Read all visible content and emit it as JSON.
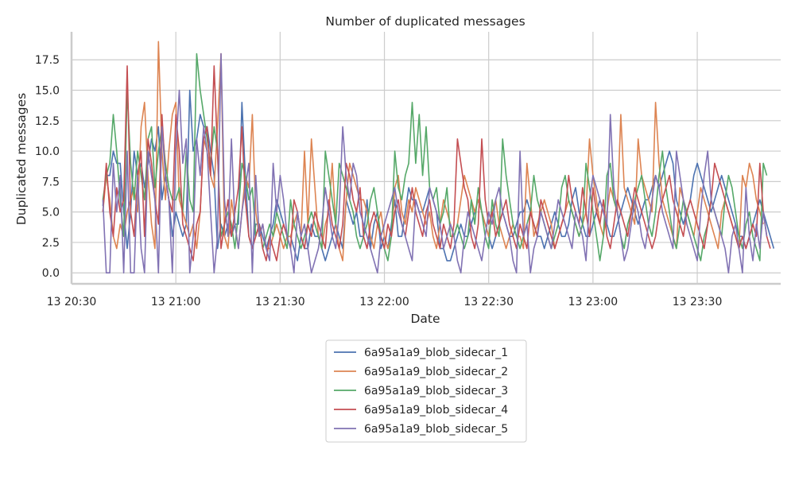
{
  "chart_data": {
    "type": "line",
    "title": "Number of duplicated messages",
    "xlabel": "Date",
    "ylabel": "Duplicated messages",
    "x_ticks": [
      {
        "label": "13 20:30",
        "minutes": 0
      },
      {
        "label": "13 21:00",
        "minutes": 30
      },
      {
        "label": "13 21:30",
        "minutes": 60
      },
      {
        "label": "13 22:00",
        "minutes": 90
      },
      {
        "label": "13 22:30",
        "minutes": 120
      },
      {
        "label": "13 23:00",
        "minutes": 150
      },
      {
        "label": "13 23:30",
        "minutes": 180
      }
    ],
    "x_range_minutes": [
      0,
      204
    ],
    "x_start": "13 20:30",
    "x_sample_start_minutes": 9.0,
    "x_sample_step_minutes": 1.0,
    "y_ticks": [
      "0.0",
      "2.5",
      "5.0",
      "7.5",
      "10.0",
      "12.5",
      "15.0",
      "17.5"
    ],
    "ylim": [
      -0.9,
      19.8
    ],
    "grid": true,
    "legend_position": "bottom-center",
    "series": [
      {
        "name": "6a95a1a9_blob_sidecar_1",
        "color": "#4c72b0",
        "values": [
          5.5,
          8,
          8,
          10,
          9,
          9,
          5,
          2,
          5,
          10,
          8,
          9,
          7,
          9,
          11,
          10,
          12,
          6,
          8,
          6,
          3,
          5,
          4,
          3,
          4,
          15,
          10,
          11,
          13,
          12,
          12,
          10,
          8,
          2,
          4,
          3,
          4,
          3,
          4,
          4,
          14,
          8,
          3,
          2,
          4,
          4,
          3,
          2,
          3,
          4,
          6,
          5,
          4,
          3,
          3,
          2,
          1,
          3,
          2,
          2,
          4,
          3,
          3,
          2,
          1,
          2,
          3,
          4,
          3,
          2,
          6,
          5,
          4,
          5,
          3,
          3,
          6,
          2,
          4,
          5,
          2,
          3,
          2,
          4,
          6,
          3,
          3,
          5,
          7,
          6,
          6,
          5,
          5,
          6,
          7,
          6,
          5,
          2,
          2,
          1,
          1,
          2,
          3,
          4,
          3,
          3,
          4,
          5,
          6,
          5,
          4,
          3,
          2,
          3,
          4,
          5,
          4,
          3,
          3,
          4,
          5,
          5,
          6,
          5,
          4,
          3,
          3,
          2,
          3,
          4,
          5,
          4,
          3,
          3,
          4,
          6,
          7,
          5,
          4,
          3,
          3,
          4,
          5,
          6,
          5,
          4,
          3,
          3,
          4,
          5,
          6,
          7,
          6,
          5,
          4,
          5,
          6,
          6,
          7,
          8,
          7,
          8,
          9,
          10,
          9,
          6,
          5,
          4,
          5,
          6,
          8,
          9,
          8,
          7,
          6,
          5,
          6,
          7,
          8,
          7,
          6,
          5,
          4,
          3,
          3,
          2,
          3,
          4,
          5,
          6,
          5,
          4,
          3,
          2
        ]
      },
      {
        "name": "6a95a1a9_blob_sidecar_2",
        "color": "#dd8452",
        "values": [
          5,
          8,
          6,
          3,
          2,
          4,
          3,
          5,
          6,
          7,
          5,
          12,
          14,
          8,
          4,
          2,
          19,
          10,
          6,
          10,
          13,
          14,
          6,
          5,
          4,
          3,
          4,
          2,
          5,
          11,
          10,
          8,
          7,
          12,
          18,
          3,
          2,
          6,
          4,
          2,
          5,
          8,
          7,
          13,
          5,
          3,
          4,
          2,
          2,
          3,
          4,
          3,
          2,
          3,
          3,
          4,
          5,
          3,
          10,
          4,
          11,
          7,
          3,
          2,
          4,
          5,
          9,
          4,
          2,
          1,
          6,
          9,
          8,
          7,
          6,
          6,
          5,
          3,
          2,
          4,
          5,
          3,
          2,
          3,
          7,
          8,
          5,
          4,
          6,
          5,
          7,
          6,
          5,
          4,
          5,
          3,
          2,
          4,
          6,
          5,
          4,
          3,
          4,
          6,
          8,
          7,
          6,
          5,
          6,
          5,
          4,
          3,
          5,
          6,
          4,
          3,
          2,
          3,
          4,
          3,
          3,
          2,
          9,
          6,
          3,
          4,
          5,
          6,
          5,
          4,
          2,
          3,
          4,
          5,
          6,
          5,
          4,
          3,
          4,
          5,
          11,
          8,
          6,
          4,
          3,
          5,
          7,
          6,
          5,
          13,
          7,
          6,
          5,
          4,
          11,
          8,
          7,
          6,
          5,
          14,
          9,
          6,
          5,
          4,
          3,
          2,
          7,
          6,
          5,
          4,
          3,
          5,
          7,
          6,
          5,
          4,
          3,
          2,
          5,
          6,
          5,
          4,
          3,
          2,
          8,
          7,
          9,
          8,
          6,
          5,
          4
        ]
      },
      {
        "name": "6a95a1a9_blob_sidecar_3",
        "color": "#55a868",
        "values": [
          6,
          8,
          9,
          13,
          10,
          6,
          3,
          15,
          9,
          6,
          10,
          8,
          6,
          11,
          12,
          7,
          10,
          12,
          9,
          7,
          6,
          6,
          7,
          5,
          10,
          6,
          5,
          18,
          15,
          13,
          11,
          9,
          12,
          10,
          3,
          4,
          5,
          4,
          2,
          5,
          9,
          8,
          6,
          7,
          3,
          4,
          2,
          3,
          4,
          3,
          5,
          4,
          3,
          2,
          6,
          4,
          3,
          2,
          3,
          4,
          5,
          4,
          3,
          2,
          10,
          8,
          6,
          4,
          9,
          8,
          7,
          6,
          5,
          3,
          2,
          3,
          4,
          6,
          7,
          5,
          3,
          2,
          1,
          3,
          10,
          7,
          6,
          8,
          9,
          14,
          9,
          13,
          8,
          12,
          7,
          6,
          7,
          4,
          5,
          7,
          3,
          3,
          4,
          3,
          2,
          3,
          6,
          4,
          7,
          5,
          3,
          2,
          6,
          4,
          3,
          11,
          8,
          6,
          4,
          3,
          2,
          3,
          4,
          5,
          8,
          6,
          5,
          4,
          3,
          2,
          3,
          4,
          7,
          8,
          6,
          5,
          4,
          3,
          4,
          9,
          7,
          5,
          3,
          1,
          3,
          8,
          9,
          6,
          5,
          3,
          2,
          4,
          5,
          6,
          7,
          8,
          6,
          4,
          3,
          5,
          8,
          10,
          7,
          5,
          3,
          2,
          4,
          6,
          5,
          4,
          3,
          2,
          1,
          3,
          4,
          6,
          5,
          4,
          3,
          6,
          8,
          7,
          5,
          3,
          2,
          4,
          5,
          3,
          2,
          1,
          9,
          8
        ]
      },
      {
        "name": "6a95a1a9_blob_sidecar_4",
        "color": "#c44e52",
        "values": [
          5,
          9,
          5,
          3,
          7,
          5,
          6,
          17,
          5,
          3,
          8,
          10,
          3,
          11,
          9,
          6,
          4,
          13,
          8,
          6,
          5,
          13,
          10,
          4,
          3,
          2,
          1,
          4,
          5,
          11,
          12,
          8,
          17,
          10,
          2,
          4,
          6,
          3,
          5,
          7,
          12,
          6,
          3,
          2,
          3,
          4,
          2,
          1,
          3,
          2,
          1,
          3,
          4,
          3,
          2,
          6,
          5,
          3,
          2,
          4,
          3,
          5,
          4,
          3,
          2,
          6,
          4,
          3,
          2,
          4,
          9,
          8,
          6,
          5,
          7,
          3,
          2,
          4,
          5,
          4,
          3,
          2,
          4,
          3,
          5,
          6,
          4,
          3,
          5,
          7,
          5,
          4,
          3,
          5,
          6,
          4,
          3,
          2,
          4,
          3,
          2,
          4,
          11,
          9,
          7,
          6,
          3,
          2,
          4,
          11,
          6,
          4,
          5,
          3,
          4,
          5,
          6,
          4,
          3,
          2,
          4,
          3,
          2,
          5,
          4,
          3,
          6,
          5,
          4,
          3,
          2,
          3,
          4,
          5,
          8,
          6,
          5,
          4,
          7,
          5,
          3,
          7,
          5,
          4,
          6,
          3,
          2,
          4,
          6,
          5,
          4,
          3,
          5,
          7,
          6,
          5,
          4,
          3,
          2,
          3,
          5,
          6,
          7,
          8,
          6,
          5,
          4,
          3,
          5,
          6,
          5,
          4,
          3,
          2,
          4,
          6,
          9,
          8,
          7,
          6,
          5,
          4,
          3,
          2,
          3,
          2,
          3,
          4,
          3,
          9,
          5,
          3,
          2
        ]
      },
      {
        "name": "6a95a1a9_blob_sidecar_5",
        "color": "#8172b3",
        "values": [
          6,
          0,
          0,
          9,
          5,
          8,
          0,
          10,
          0,
          0,
          8,
          2,
          0,
          10,
          8,
          6,
          0,
          12,
          8,
          6,
          0,
          10,
          15,
          9,
          11,
          0,
          3,
          11,
          8,
          12,
          10,
          5,
          0,
          3,
          18,
          6,
          3,
          11,
          4,
          2,
          5,
          7,
          9,
          0,
          8,
          3,
          4,
          2,
          1,
          9,
          5,
          8,
          6,
          3,
          2,
          0,
          5,
          3,
          4,
          2,
          0,
          1,
          2,
          4,
          7,
          5,
          3,
          2,
          5,
          12,
          8,
          6,
          9,
          8,
          5,
          4,
          3,
          2,
          1,
          0,
          3,
          4,
          5,
          6,
          7,
          5,
          4,
          3,
          2,
          1,
          6,
          5,
          4,
          3,
          7,
          6,
          5,
          4,
          2,
          3,
          4,
          3,
          1,
          0,
          3,
          5,
          4,
          3,
          2,
          1,
          3,
          5,
          4,
          6,
          7,
          5,
          4,
          3,
          1,
          0,
          10,
          3,
          4,
          0,
          2,
          3,
          5,
          4,
          3,
          2,
          4,
          6,
          5,
          4,
          3,
          2,
          5,
          4,
          3,
          1,
          6,
          8,
          7,
          6,
          5,
          4,
          13,
          7,
          5,
          3,
          1,
          2,
          4,
          6,
          5,
          3,
          2,
          4,
          6,
          8,
          7,
          5,
          4,
          3,
          2,
          10,
          8,
          6,
          4,
          3,
          2,
          1,
          5,
          8,
          10,
          6,
          5,
          4,
          3,
          2,
          0,
          3,
          4,
          2,
          0,
          7,
          3,
          1,
          4,
          2,
          5,
          3
        ]
      }
    ]
  }
}
